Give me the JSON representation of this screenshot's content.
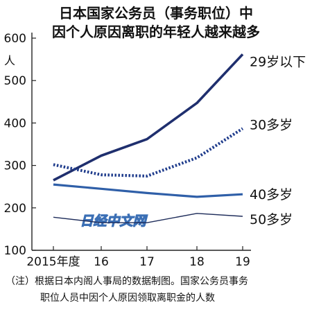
{
  "chart_data": {
    "type": "line",
    "title_line1": "日本国家公务员（事务职位）中",
    "title_line2": "因个人原因离职的年轻人越来越多",
    "y_unit": "人",
    "ylim": [
      100,
      600
    ],
    "y_ticks": [
      100,
      200,
      300,
      400,
      500,
      600
    ],
    "categories": [
      "2015年度",
      "16",
      "17",
      "18",
      "19"
    ],
    "series": [
      {
        "name": "29岁以下",
        "values": [
          265,
          323,
          362,
          447,
          562
        ],
        "color": "#1f2f6e",
        "style": "solid-thick"
      },
      {
        "name": "30多岁",
        "values": [
          302,
          278,
          275,
          318,
          387
        ],
        "color": "#1f3c8c",
        "style": "dotted-thick"
      },
      {
        "name": "40多岁",
        "values": [
          255,
          245,
          235,
          226,
          232
        ],
        "color": "#2f5fa8",
        "style": "solid-medium"
      },
      {
        "name": "50多岁",
        "values": [
          178,
          165,
          165,
          187,
          180
        ],
        "color": "#1e2c5a",
        "style": "solid-thin"
      }
    ],
    "watermark": "日经中文网",
    "grid": false,
    "legend": "labels at line ends"
  },
  "note_line1": "（注）根据日本内阁人事局的数据制图。国家公务员事务",
  "note_line2": "职位人员中因个人原因领取离职金的人数"
}
